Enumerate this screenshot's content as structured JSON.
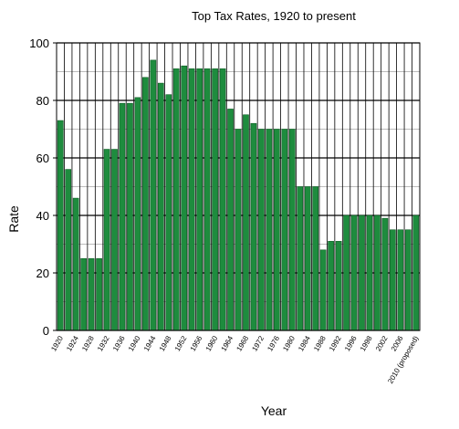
{
  "chart_data": {
    "type": "bar",
    "title": "Top Tax Rates, 1920 to present",
    "xlabel": "Year",
    "ylabel": "Rate",
    "categories": [
      "1920",
      null,
      "1924",
      null,
      "1928",
      null,
      "1932",
      null,
      "1936",
      null,
      "1940",
      null,
      "1944",
      null,
      "1948",
      null,
      "1952",
      null,
      "1956",
      null,
      "1960",
      null,
      "1964",
      null,
      "1968",
      null,
      "1972",
      null,
      "1976",
      null,
      "1980",
      null,
      "1984",
      null,
      "1988",
      null,
      "1992",
      null,
      "1996",
      null,
      "1998",
      null,
      "2002",
      null,
      "2006",
      null,
      "2010 (proposed)"
    ],
    "values": [
      73,
      56,
      46,
      25,
      25,
      25,
      63,
      63,
      79,
      79,
      81,
      88,
      94,
      86,
      82,
      91,
      92,
      91,
      91,
      91,
      91,
      91,
      77,
      70,
      75,
      72,
      70,
      70,
      70,
      70,
      70,
      50,
      50,
      50,
      28,
      31,
      31,
      40,
      40,
      40,
      40,
      40,
      39,
      35,
      35,
      35,
      40
    ],
    "color": "#1e8c3e",
    "ylim": [
      0,
      100
    ],
    "yticks": [
      0,
      20,
      40,
      60,
      80,
      100
    ],
    "minor_yticks": [
      10,
      30,
      50,
      70,
      90
    ],
    "grid": true
  }
}
